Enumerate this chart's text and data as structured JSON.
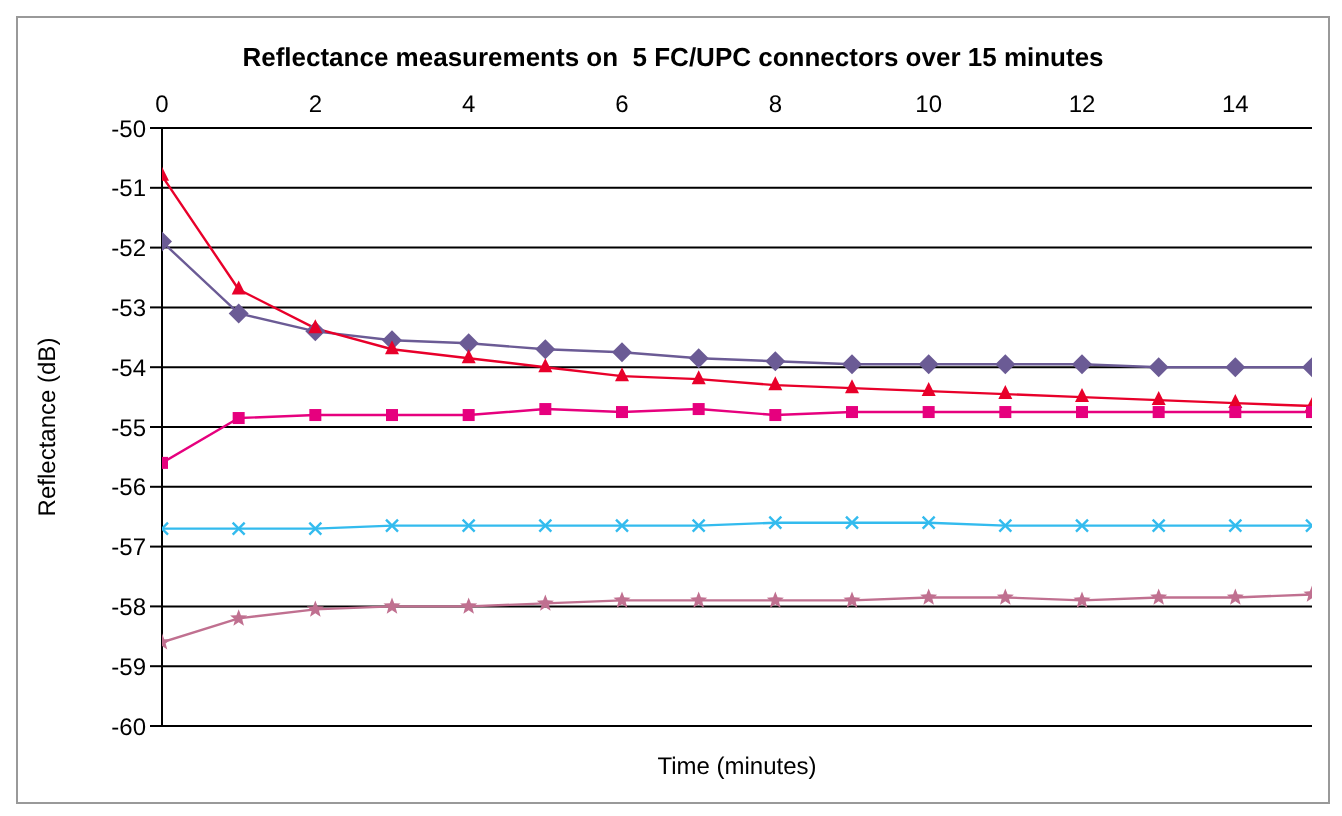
{
  "chart_data": {
    "type": "line",
    "title": "Reflectance measurements on  5 FC/UPC connectors over 15 minutes",
    "xlabel": "Time (minutes)",
    "ylabel": "Reflectance (dB)",
    "x": [
      0,
      1,
      2,
      3,
      4,
      5,
      6,
      7,
      8,
      9,
      10,
      11,
      12,
      13,
      14,
      15
    ],
    "xlim": [
      0,
      15
    ],
    "xticks": [
      0,
      2,
      4,
      6,
      8,
      10,
      12,
      14
    ],
    "ylim": [
      -60,
      -50
    ],
    "yticks": [
      -60,
      -59,
      -58,
      -57,
      -56,
      -55,
      -54,
      -53,
      -52,
      -51,
      -50
    ],
    "grid": "y",
    "legend": false,
    "series": [
      {
        "color": "#6b5b95",
        "marker": "diamond",
        "values": [
          -51.9,
          -53.1,
          -53.4,
          -53.55,
          -53.6,
          -53.7,
          -53.75,
          -53.85,
          -53.9,
          -53.95,
          -53.95,
          -53.95,
          -53.95,
          -54.0,
          -54.0,
          -54.0
        ]
      },
      {
        "color": "#e8002a",
        "marker": "triangle",
        "values": [
          -50.8,
          -52.7,
          -53.35,
          -53.7,
          -53.85,
          -54.0,
          -54.15,
          -54.2,
          -54.3,
          -54.35,
          -54.4,
          -54.45,
          -54.5,
          -54.55,
          -54.6,
          -54.65
        ]
      },
      {
        "color": "#e6007e",
        "marker": "square",
        "values": [
          -55.6,
          -54.85,
          -54.8,
          -54.8,
          -54.8,
          -54.7,
          -54.75,
          -54.7,
          -54.8,
          -54.75,
          -54.75,
          -54.75,
          -54.75,
          -54.75,
          -54.75,
          -54.75
        ]
      },
      {
        "color": "#33bbee",
        "marker": "cross",
        "values": [
          -56.7,
          -56.7,
          -56.7,
          -56.65,
          -56.65,
          -56.65,
          -56.65,
          -56.65,
          -56.6,
          -56.6,
          -56.6,
          -56.65,
          -56.65,
          -56.65,
          -56.65,
          -56.65
        ]
      },
      {
        "color": "#c07090",
        "marker": "star",
        "values": [
          -58.6,
          -58.2,
          -58.05,
          -58.0,
          -58.0,
          -57.95,
          -57.9,
          -57.9,
          -57.9,
          -57.9,
          -57.85,
          -57.85,
          -57.9,
          -57.85,
          -57.85,
          -57.8
        ]
      }
    ]
  }
}
